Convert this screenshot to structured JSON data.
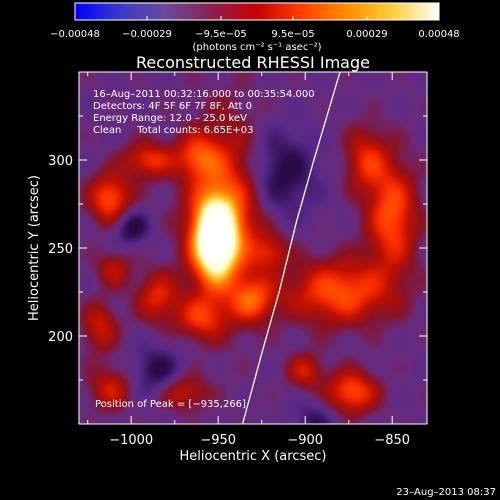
{
  "chart_data": {
    "type": "heatmap",
    "title": "Reconstructed RHESSI Image",
    "xlabel": "Heliocentric X (arcsec)",
    "ylabel": "Heliocentric Y (arcsec)",
    "xlim": [
      -1030,
      -830
    ],
    "ylim": [
      150,
      350
    ],
    "x_ticks": [
      -1000,
      -950,
      -900,
      -850
    ],
    "y_ticks": [
      200,
      250,
      300
    ],
    "x_tick_labels": [
      "−1000",
      "−950",
      "−900",
      "−850"
    ],
    "y_tick_labels": [
      "200",
      "250",
      "300"
    ],
    "colorbar": {
      "range": [
        -0.00048,
        0.00048
      ],
      "ticks": [
        -0.00048,
        -0.00029,
        -9.5e-05,
        9.5e-05,
        0.00029,
        0.00048
      ],
      "tick_labels": [
        "−0.00048",
        "−0.00029",
        "−9.5e−05",
        "9.5e−05",
        "0.00029",
        "0.00048"
      ],
      "units_label": "(photons cm⁻² s⁻¹ asec⁻²)",
      "colors": [
        "#0000ff",
        "#3a3ac8",
        "#6b4a9a",
        "#8a2050",
        "#c80000",
        "#ff4000",
        "#ff9000",
        "#ffd040",
        "#ffffff"
      ]
    },
    "annotations": [
      "16–Aug–2011 00:32:16.000 to 00:35:54.000",
      "Detectors: 4F 5F 6F 7F 8F, Att 0",
      "Energy Range: 12.0 – 25.0 keV",
      "Clean     Total counts: 6.65E+03"
    ],
    "peak_label": "Position of Peak = [−935,266]",
    "peak": {
      "x": -935,
      "y": 266
    },
    "limb_curve": [
      [
        -936,
        150
      ],
      [
        -925,
        190
      ],
      [
        -915,
        225
      ],
      [
        -905,
        265
      ],
      [
        -895,
        300
      ],
      [
        -880,
        350
      ]
    ],
    "blobs": [
      {
        "x": -952,
        "y": 255,
        "w": 12,
        "h": 22,
        "amp": 1.2
      },
      {
        "x": -945,
        "y": 270,
        "w": 22,
        "h": 50,
        "amp": 0.55
      },
      {
        "x": -1012,
        "y": 278,
        "w": 12,
        "h": 14,
        "amp": 0.55
      },
      {
        "x": -990,
        "y": 300,
        "w": 14,
        "h": 10,
        "amp": 0.45
      },
      {
        "x": -962,
        "y": 302,
        "w": 12,
        "h": 12,
        "amp": 0.4
      },
      {
        "x": -1010,
        "y": 238,
        "w": 10,
        "h": 10,
        "amp": 0.3
      },
      {
        "x": -985,
        "y": 222,
        "w": 12,
        "h": 14,
        "amp": 0.4
      },
      {
        "x": -960,
        "y": 210,
        "w": 14,
        "h": 12,
        "amp": 0.4
      },
      {
        "x": -930,
        "y": 220,
        "w": 12,
        "h": 12,
        "amp": 0.45
      },
      {
        "x": -1018,
        "y": 205,
        "w": 10,
        "h": 14,
        "amp": 0.35
      },
      {
        "x": -880,
        "y": 225,
        "w": 30,
        "h": 18,
        "amp": 0.55
      },
      {
        "x": -850,
        "y": 268,
        "w": 14,
        "h": 30,
        "amp": 0.55
      },
      {
        "x": -865,
        "y": 300,
        "w": 12,
        "h": 18,
        "amp": 0.4
      },
      {
        "x": -873,
        "y": 168,
        "w": 14,
        "h": 12,
        "amp": 0.55
      },
      {
        "x": -900,
        "y": 180,
        "w": 10,
        "h": 10,
        "amp": 0.35
      },
      {
        "x": -1012,
        "y": 170,
        "w": 12,
        "h": 12,
        "amp": 0.35
      },
      {
        "x": -970,
        "y": 168,
        "w": 14,
        "h": 10,
        "amp": 0.35
      },
      {
        "x": -920,
        "y": 248,
        "w": 10,
        "h": 10,
        "amp": 0.3
      },
      {
        "x": -1000,
        "y": 262,
        "w": 10,
        "h": 10,
        "amp": -0.35
      },
      {
        "x": -915,
        "y": 292,
        "w": 20,
        "h": 25,
        "amp": -0.35
      },
      {
        "x": -985,
        "y": 180,
        "w": 14,
        "h": 14,
        "amp": -0.3
      },
      {
        "x": -895,
        "y": 150,
        "w": 12,
        "h": 12,
        "amp": -0.25
      }
    ]
  },
  "timestamp": "23–Aug–2013 08:37"
}
